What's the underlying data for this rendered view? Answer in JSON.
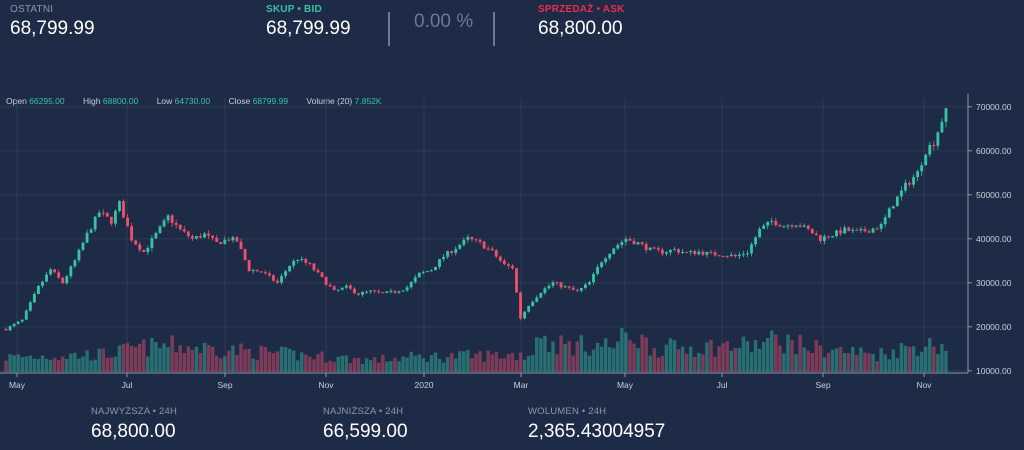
{
  "ticker": {
    "last_label": "OSTATNI",
    "last_value": "68,799.99",
    "bid_label": "SKUP • BID",
    "bid_value": "68,799.99",
    "change_value": "0.00 %",
    "ask_label": "SPRZEDAŻ • ASK",
    "ask_value": "68,800.00"
  },
  "ohlc": {
    "open_label": "Open",
    "open_value": "66295.00",
    "high_label": "High",
    "high_value": "68800.00",
    "low_label": "Low",
    "low_value": "64730.00",
    "close_label": "Close",
    "close_value": "68799.99",
    "volume_label": "Volume (20)",
    "volume_value": "7.852K"
  },
  "stats": {
    "high_label": "NAJWYŻSZA • 24H",
    "high_value": "68,800.00",
    "low_label": "NAJNIŻSZA • 24H",
    "low_value": "66,599.00",
    "volume_label": "WOLUMEN • 24H",
    "volume_value": "2,365.43004957"
  },
  "colors": {
    "background": "#1e2b47",
    "up": "#35c3a4",
    "down": "#ef4f6b",
    "bid": "#35c3a4",
    "ask": "#ef2b4c",
    "muted": "#6b7a92"
  },
  "chart_data": {
    "type": "candlestick",
    "x_tick_labels": [
      "May",
      "Jul",
      "Sep",
      "Nov",
      "2020",
      "Mar",
      "May",
      "Jul",
      "Sep",
      "Nov"
    ],
    "y_tick_labels": [
      "70000.00",
      "60000.00",
      "50000.00",
      "40000.00",
      "30000.00",
      "20000.00",
      "10000.00"
    ],
    "ylim": [
      9500,
      72000
    ],
    "grid": true,
    "close_path": [
      [
        0,
        19500
      ],
      [
        4,
        21500
      ],
      [
        8,
        29000
      ],
      [
        11,
        33000
      ],
      [
        14,
        30000
      ],
      [
        17,
        35000
      ],
      [
        20,
        41000
      ],
      [
        23,
        46000
      ],
      [
        26,
        44000
      ],
      [
        28,
        48000
      ],
      [
        31,
        40000
      ],
      [
        34,
        37000
      ],
      [
        37,
        41000
      ],
      [
        40,
        45000
      ],
      [
        43,
        42000
      ],
      [
        46,
        40000
      ],
      [
        49,
        41000
      ],
      [
        52,
        39000
      ],
      [
        55,
        40000
      ],
      [
        57,
        39500
      ],
      [
        60,
        33000
      ],
      [
        63,
        32500
      ],
      [
        67,
        30000
      ],
      [
        70,
        34000
      ],
      [
        72,
        35500
      ],
      [
        75,
        34000
      ],
      [
        78,
        31000
      ],
      [
        81,
        28000
      ],
      [
        84,
        29000
      ],
      [
        87,
        27500
      ],
      [
        90,
        28000
      ],
      [
        93,
        27500
      ],
      [
        96,
        28000
      ],
      [
        99,
        29000
      ],
      [
        102,
        32000
      ],
      [
        105,
        33000
      ],
      [
        108,
        36000
      ],
      [
        111,
        38000
      ],
      [
        114,
        40000
      ],
      [
        117,
        39000
      ],
      [
        120,
        37000
      ],
      [
        123,
        34000
      ],
      [
        125,
        33500
      ],
      [
        127,
        22000
      ],
      [
        129,
        25000
      ],
      [
        132,
        28000
      ],
      [
        135,
        30000
      ],
      [
        138,
        29000
      ],
      [
        141,
        28000
      ],
      [
        144,
        30000
      ],
      [
        147,
        35000
      ],
      [
        150,
        38000
      ],
      [
        153,
        40000
      ],
      [
        156,
        39000
      ],
      [
        159,
        37500
      ],
      [
        162,
        37000
      ],
      [
        165,
        37500
      ],
      [
        168,
        36800
      ],
      [
        171,
        37000
      ],
      [
        174,
        36500
      ],
      [
        177,
        36500
      ],
      [
        180,
        36000
      ],
      [
        183,
        37000
      ],
      [
        186,
        42000
      ],
      [
        189,
        44000
      ],
      [
        192,
        43000
      ],
      [
        195,
        43500
      ],
      [
        198,
        42000
      ],
      [
        201,
        40000
      ],
      [
        204,
        41000
      ],
      [
        207,
        42000
      ],
      [
        210,
        41500
      ],
      [
        213,
        42000
      ],
      [
        216,
        43000
      ],
      [
        219,
        48000
      ],
      [
        222,
        52000
      ],
      [
        225,
        55000
      ],
      [
        227,
        60000
      ],
      [
        229,
        62000
      ],
      [
        231,
        67000
      ],
      [
        232,
        68800
      ]
    ],
    "volume_axis": [
      0,
      50
    ],
    "volume_path": [
      [
        0,
        5
      ],
      [
        25,
        6
      ],
      [
        32,
        8
      ],
      [
        40,
        9
      ],
      [
        90,
        4
      ],
      [
        100,
        5
      ],
      [
        130,
        6
      ],
      [
        131,
        14
      ],
      [
        132,
        15
      ],
      [
        133,
        10
      ],
      [
        140,
        9
      ],
      [
        150,
        9
      ],
      [
        154,
        13
      ],
      [
        160,
        8
      ],
      [
        185,
        9
      ],
      [
        190,
        11
      ],
      [
        200,
        8
      ],
      [
        215,
        6
      ],
      [
        225,
        9
      ],
      [
        232,
        9
      ]
    ]
  }
}
